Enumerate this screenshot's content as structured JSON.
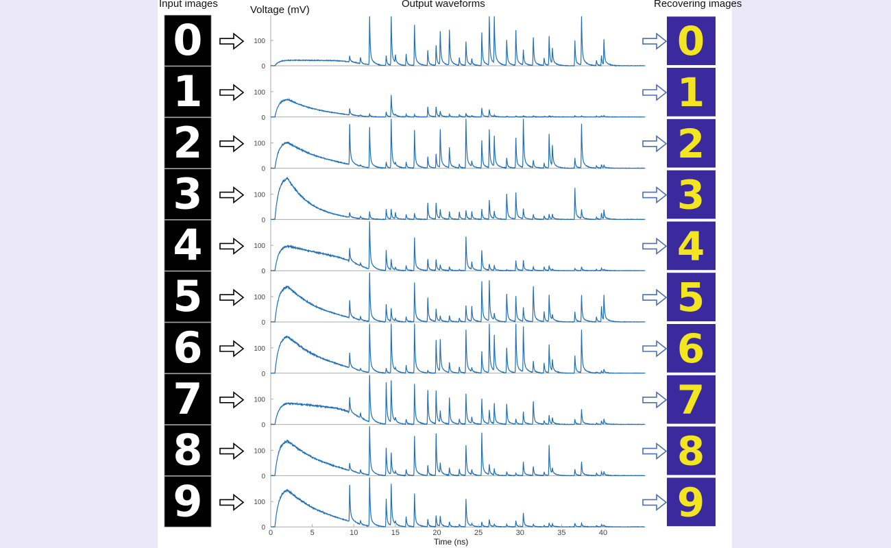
{
  "titles": {
    "input": "Input images",
    "voltage_axis": "Voltage (mV)",
    "output": "Output waveforms",
    "recovering": "Recovering images",
    "time_axis": "Time (ns)"
  },
  "colors": {
    "waveform": "#1f6fb8",
    "input_bg": "#000000",
    "input_digit": "#ffffff",
    "recovered_bg": "#3b2a9e",
    "recovered_digit": "#f3e51f",
    "arrow_input": "#000000",
    "arrow_output": "#4a6fb5",
    "axis": "#aaaaaa",
    "side_bg": "#eae8f7"
  },
  "icons": {
    "arrow_in": "right-arrow-outline-icon",
    "arrow_out": "right-arrow-outline-icon"
  },
  "chart_data": {
    "type": "line",
    "title": "Output waveforms",
    "xlabel": "Time (ns)",
    "ylabel": "Voltage (mV)",
    "xlim": [
      0,
      45
    ],
    "ylim": [
      0,
      195
    ],
    "x_ticks": [
      "0",
      "5",
      "10",
      "15",
      "20",
      "25",
      "30",
      "35",
      "40"
    ],
    "y_ticks": [
      "0",
      "100"
    ],
    "grid": false,
    "digits": [
      "0",
      "1",
      "2",
      "3",
      "4",
      "5",
      "6",
      "7",
      "8",
      "9"
    ],
    "peak_times_ns": [
      9.5,
      10.8,
      11.9,
      13.9,
      14.5,
      15.0,
      16.3,
      17.3,
      18.9,
      19.9,
      20.4,
      21.5,
      22.7,
      23.5,
      24.2,
      25.4,
      26.3,
      26.9,
      28.4,
      29.5,
      30.4,
      31.6,
      32.9,
      33.5,
      33.9,
      36.6,
      37.4,
      39.2,
      39.8,
      40.1
    ],
    "series": [
      {
        "digit": "0",
        "envelope_peak_mV": 22,
        "envelope_decay_ns": 100,
        "peak_mV": [
          25,
          25,
          195,
          40,
          195,
          30,
          45,
          160,
          60,
          80,
          130,
          140,
          30,
          95,
          25,
          130,
          195,
          190,
          100,
          140,
          60,
          110,
          30,
          115,
          60,
          100,
          195,
          20,
          40,
          100
        ]
      },
      {
        "digit": "1",
        "envelope_peak_mV": 72,
        "envelope_decay_ns": 4,
        "peak_mV": [
          25,
          5,
          10,
          20,
          85,
          5,
          10,
          10,
          40,
          40,
          20,
          10,
          10,
          15,
          5,
          35,
          30,
          5,
          3,
          5,
          5,
          5,
          3,
          5,
          3,
          5,
          5,
          3,
          5,
          5
        ]
      },
      {
        "digit": "2",
        "envelope_peak_mV": 105,
        "envelope_decay_ns": 4.5,
        "peak_mV": [
          160,
          5,
          160,
          25,
          195,
          10,
          25,
          150,
          45,
          55,
          150,
          80,
          15,
          195,
          20,
          110,
          150,
          120,
          40,
          120,
          195,
          30,
          20,
          135,
          80,
          40,
          175,
          10,
          15,
          10
        ]
      },
      {
        "digit": "3",
        "envelope_peak_mV": 168,
        "envelope_decay_ns": 2.8,
        "peak_mV": [
          20,
          10,
          30,
          40,
          40,
          25,
          20,
          25,
          65,
          65,
          35,
          30,
          30,
          35,
          30,
          40,
          75,
          30,
          100,
          105,
          40,
          20,
          15,
          20,
          20,
          125,
          35,
          10,
          25,
          35
        ]
      },
      {
        "digit": "4",
        "envelope_peak_mV": 100,
        "envelope_decay_ns": 11,
        "peak_mV": [
          50,
          10,
          195,
          80,
          40,
          10,
          20,
          130,
          45,
          45,
          20,
          15,
          5,
          135,
          30,
          80,
          25,
          20,
          5,
          40,
          40,
          15,
          15,
          20,
          5,
          10,
          15,
          5,
          10,
          5
        ]
      },
      {
        "digit": "5",
        "envelope_peak_mV": 145,
        "envelope_decay_ns": 4,
        "peak_mV": [
          70,
          15,
          195,
          70,
          50,
          10,
          20,
          155,
          95,
          50,
          20,
          25,
          15,
          65,
          60,
          160,
          160,
          25,
          110,
          100,
          55,
          140,
          40,
          105,
          20,
          40,
          105,
          20,
          60,
          100
        ]
      },
      {
        "digit": "6",
        "envelope_peak_mV": 150,
        "envelope_decay_ns": 4.5,
        "peak_mV": [
          60,
          10,
          195,
          20,
          195,
          10,
          30,
          195,
          10,
          130,
          125,
          40,
          25,
          170,
          15,
          85,
          195,
          140,
          100,
          195,
          180,
          45,
          40,
          110,
          45,
          70,
          170,
          5,
          10,
          15
        ]
      },
      {
        "digit": "7",
        "envelope_peak_mV": 85,
        "envelope_decay_ns": 25,
        "peak_mV": [
          60,
          20,
          195,
          165,
          165,
          15,
          20,
          160,
          135,
          130,
          45,
          105,
          20,
          120,
          25,
          100,
          55,
          80,
          80,
          20,
          50,
          90,
          15,
          35,
          25,
          20,
          60,
          5,
          15,
          20
        ]
      },
      {
        "digit": "8",
        "envelope_peak_mV": 142,
        "envelope_decay_ns": 4.5,
        "peak_mV": [
          30,
          15,
          195,
          110,
          85,
          10,
          25,
          155,
          40,
          165,
          40,
          30,
          25,
          120,
          20,
          170,
          40,
          25,
          15,
          10,
          55,
          35,
          15,
          120,
          20,
          25,
          55,
          10,
          15,
          15
        ]
      },
      {
        "digit": "9",
        "envelope_peak_mV": 150,
        "envelope_decay_ns": 4.5,
        "peak_mV": [
          145,
          15,
          195,
          110,
          165,
          10,
          40,
          130,
          30,
          45,
          40,
          20,
          10,
          110,
          10,
          20,
          30,
          10,
          10,
          25,
          55,
          10,
          5,
          15,
          10,
          15,
          15,
          5,
          10,
          5
        ]
      }
    ]
  }
}
